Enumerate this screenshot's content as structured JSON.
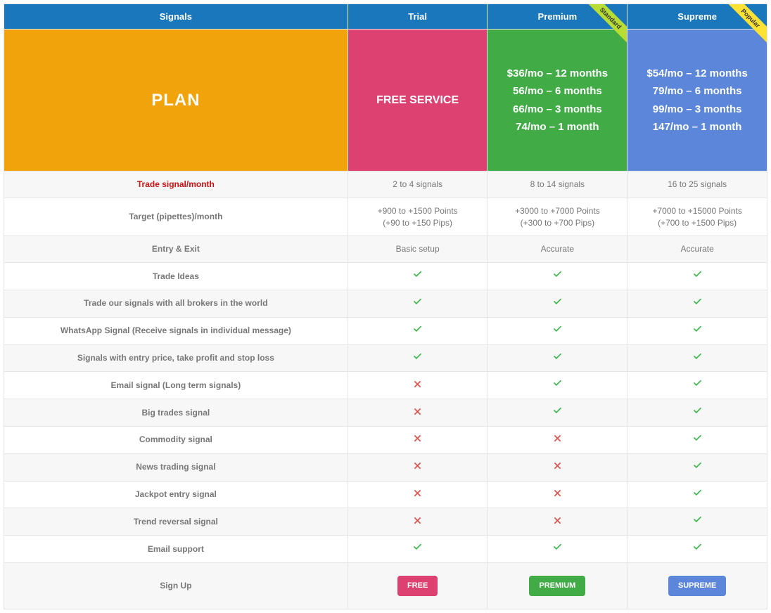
{
  "header": {
    "signals": "Signals",
    "trial": "Trial",
    "premium": "Premium",
    "supreme": "Supreme",
    "ribbon_standard": "Standard",
    "ribbon_popular": "Popular"
  },
  "plan_row": {
    "label": "PLAN",
    "trial": "FREE SERVICE",
    "premium": {
      "line1": "$36/mo – 12 months",
      "line2": "56/mo – 6 months",
      "line3": "66/mo – 3 months",
      "line4": "74/mo – 1 month"
    },
    "supreme": {
      "line1": "$54/mo – 12 months",
      "line2": "79/mo – 6 months",
      "line3": "99/mo – 3 months",
      "line4": "147/mo – 1 month"
    }
  },
  "colors": {
    "header_bg": "#1a77bb",
    "plan_label_bg": "#f0a30a",
    "trial_bg": "#dc4171",
    "premium_bg": "#41ab46",
    "supreme_bg": "#5b86d9",
    "ribbon_standard_bg": "#b7dd35",
    "ribbon_popular_bg": "#ffe233",
    "check_color": "#3ab54a",
    "cross_color": "#d9534f",
    "row_alt_bg": "#f7f7f7",
    "border": "#e5e5e5",
    "highlight_text": "#cc1111"
  },
  "features": [
    {
      "label": "Trade signal/month",
      "trial": "2 to 4 signals",
      "premium": "8 to 14 signals",
      "supreme": "16 to 25 signals",
      "highlight": true
    },
    {
      "label": "Target (pipettes)/month",
      "trial": "+900 to +1500 Points\n(+90 to +150 Pips)",
      "premium": "+3000 to +7000 Points\n(+300 to +700 Pips)",
      "supreme": "+7000 to +15000 Points\n(+700 to +1500 Pips)"
    },
    {
      "label": "Entry & Exit",
      "trial": "Basic setup",
      "premium": "Accurate",
      "supreme": "Accurate"
    },
    {
      "label": "Trade Ideas",
      "trial": "check",
      "premium": "check",
      "supreme": "check"
    },
    {
      "label": "Trade our signals with all brokers in the world",
      "trial": "check",
      "premium": "check",
      "supreme": "check"
    },
    {
      "label": "WhatsApp Signal (Receive signals in individual message)",
      "trial": "check",
      "premium": "check",
      "supreme": "check"
    },
    {
      "label": "Signals with entry price, take profit and stop loss",
      "trial": "check",
      "premium": "check",
      "supreme": "check"
    },
    {
      "label": "Email signal (Long term signals)",
      "trial": "cross",
      "premium": "check",
      "supreme": "check"
    },
    {
      "label": "Big trades signal",
      "trial": "cross",
      "premium": "check",
      "supreme": "check"
    },
    {
      "label": "Commodity signal",
      "trial": "cross",
      "premium": "cross",
      "supreme": "check"
    },
    {
      "label": "News trading signal",
      "trial": "cross",
      "premium": "cross",
      "supreme": "check"
    },
    {
      "label": "Jackpot entry signal",
      "trial": "cross",
      "premium": "cross",
      "supreme": "check"
    },
    {
      "label": "Trend reversal signal",
      "trial": "cross",
      "premium": "cross",
      "supreme": "check"
    },
    {
      "label": "Email support",
      "trial": "check",
      "premium": "check",
      "supreme": "check"
    }
  ],
  "signup": {
    "label": "Sign Up",
    "trial_btn": "FREE",
    "premium_btn": "PREMIUM",
    "supreme_btn": "SUPREME"
  }
}
